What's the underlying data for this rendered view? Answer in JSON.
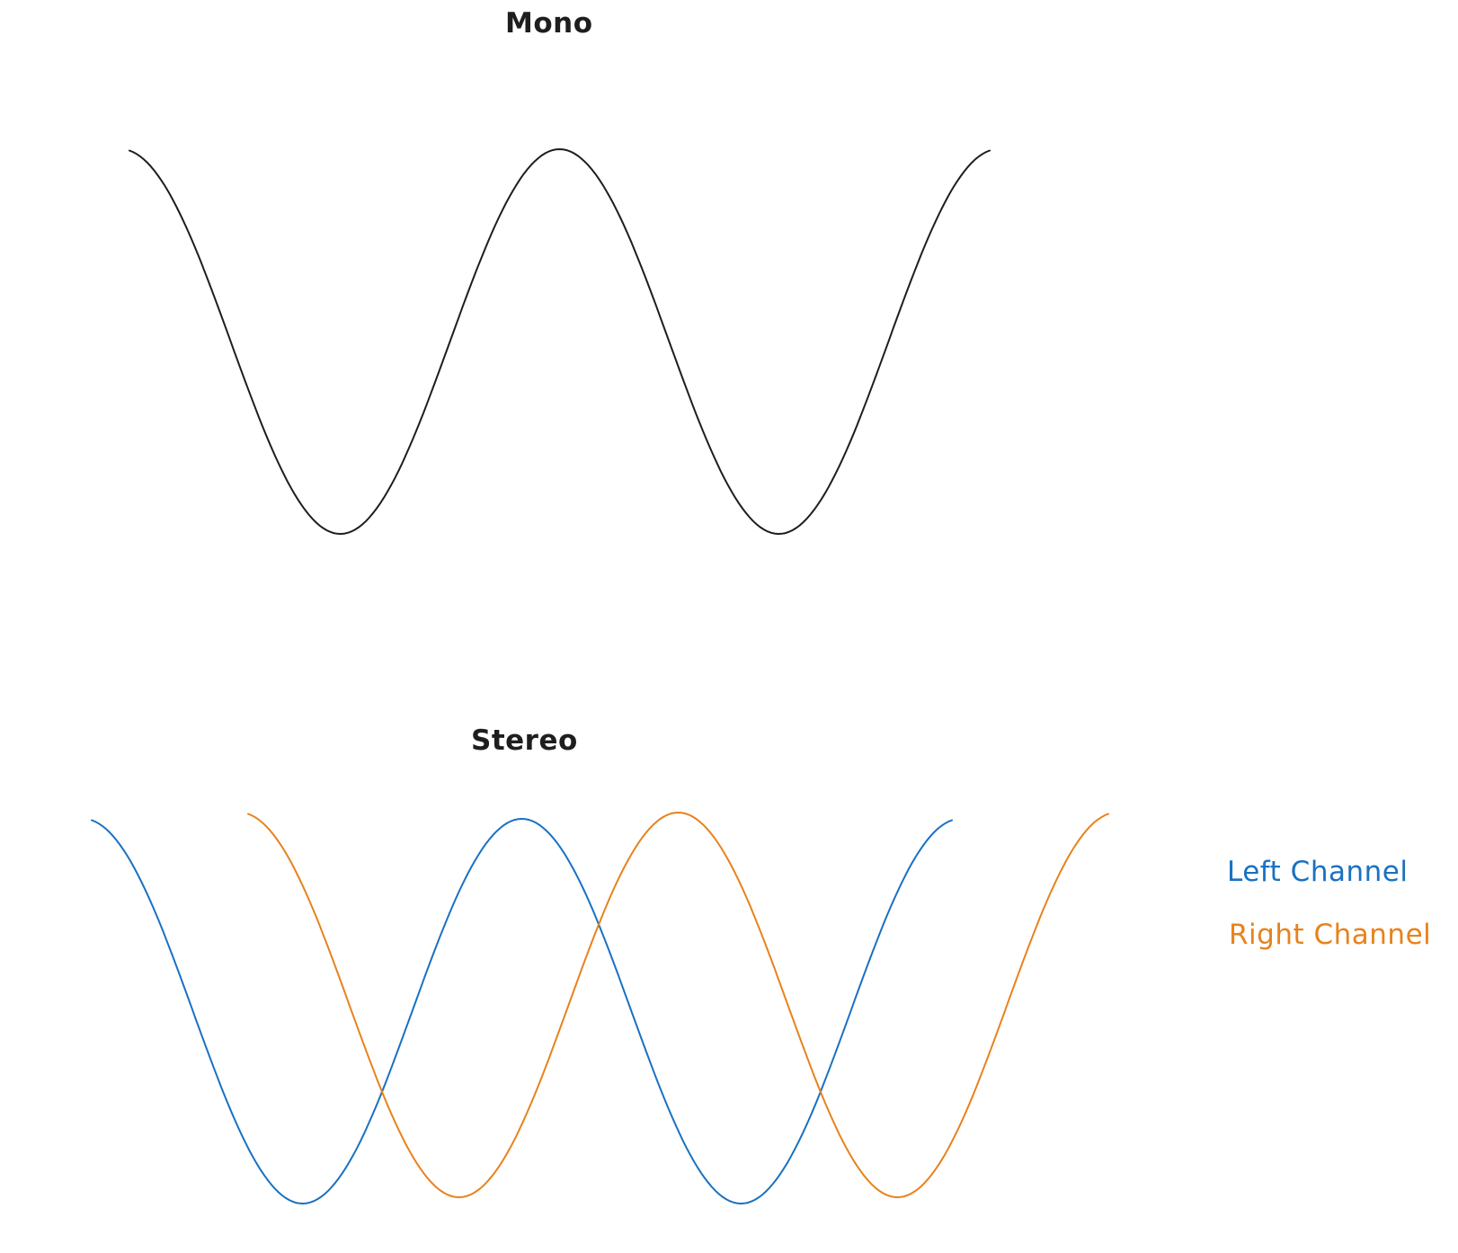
{
  "diagram": {
    "mono": {
      "title": "Mono",
      "wave": {
        "color": "#1e1e1e"
      }
    },
    "stereo": {
      "title": "Stereo",
      "left_wave": {
        "color": "#1971c2"
      },
      "right_wave": {
        "color": "#e8821c"
      }
    },
    "legend": {
      "left_label": "Left Channel",
      "left_color": "#1971c2",
      "right_label": "Right Channel",
      "right_color": "#e8821c"
    }
  }
}
